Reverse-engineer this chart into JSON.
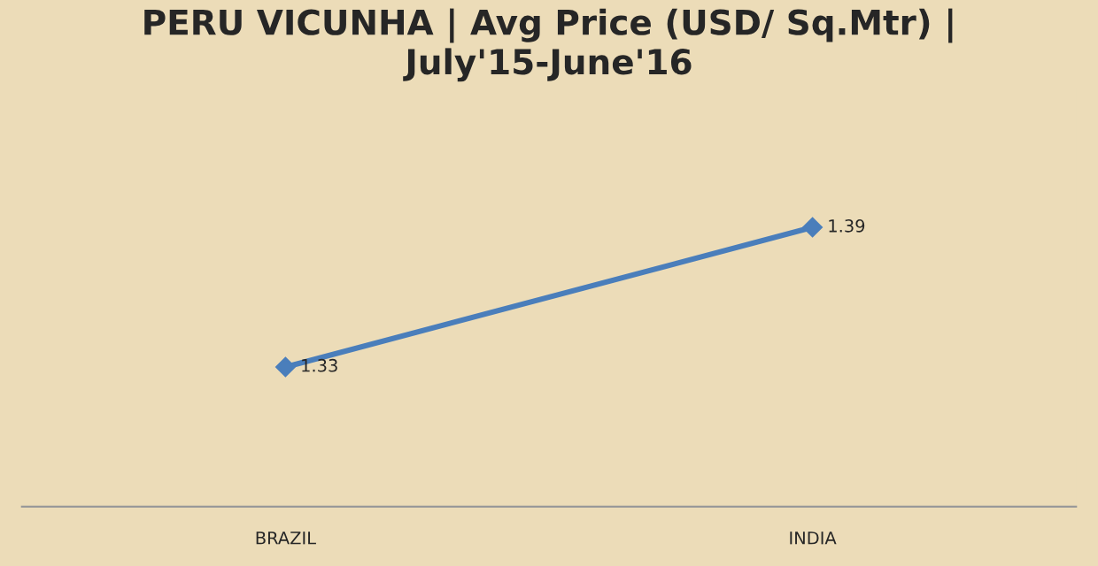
{
  "chart_data": {
    "type": "line",
    "title": "PERU VICUNHA | Avg Price (USD/ Sq.Mtr) |\nJuly'15-June'16",
    "categories": [
      "BRAZIL",
      "INDIA"
    ],
    "series": [
      {
        "color": "#4a7ebb",
        "values": [
          1.33,
          1.39
        ]
      }
    ],
    "data_labels": true,
    "marker": "diamond",
    "line_style": "solid",
    "grid": false,
    "legend": false
  }
}
